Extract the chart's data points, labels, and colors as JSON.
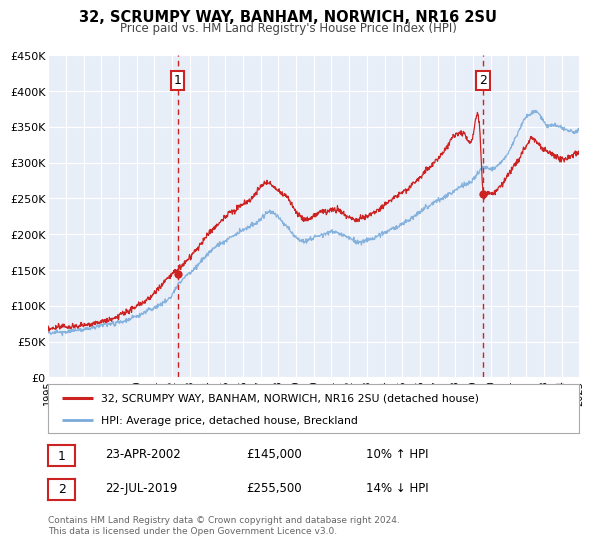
{
  "title": "32, SCRUMPY WAY, BANHAM, NORWICH, NR16 2SU",
  "subtitle": "Price paid vs. HM Land Registry's House Price Index (HPI)",
  "background_color": "#ffffff",
  "plot_bg_color": "#e8eef8",
  "grid_color": "#ffffff",
  "sale1_date_x": 2002.31,
  "sale1_price": 145000,
  "sale1_label": "1",
  "sale2_date_x": 2019.55,
  "sale2_price": 255500,
  "sale2_label": "2",
  "hpi_color": "#7aabdb",
  "sale_color": "#cc2222",
  "legend_sale_label": "32, SCRUMPY WAY, BANHAM, NORWICH, NR16 2SU (detached house)",
  "legend_hpi_label": "HPI: Average price, detached house, Breckland",
  "table_row1": [
    "1",
    "23-APR-2002",
    "£145,000",
    "10% ↑ HPI"
  ],
  "table_row2": [
    "2",
    "22-JUL-2019",
    "£255,500",
    "14% ↓ HPI"
  ],
  "footnote": "Contains HM Land Registry data © Crown copyright and database right 2024.\nThis data is licensed under the Open Government Licence v3.0.",
  "ylim": [
    0,
    450000
  ],
  "xlim_start": 1995,
  "xlim_end": 2025,
  "yticks": [
    0,
    50000,
    100000,
    150000,
    200000,
    250000,
    300000,
    350000,
    400000,
    450000
  ],
  "ytick_labels": [
    "£0",
    "£50K",
    "£100K",
    "£150K",
    "£200K",
    "£250K",
    "£300K",
    "£350K",
    "£400K",
    "£450K"
  ],
  "xticks": [
    1995,
    1996,
    1997,
    1998,
    1999,
    2000,
    2001,
    2002,
    2003,
    2004,
    2005,
    2006,
    2007,
    2008,
    2009,
    2010,
    2011,
    2012,
    2013,
    2014,
    2015,
    2016,
    2017,
    2018,
    2019,
    2020,
    2021,
    2022,
    2023,
    2024,
    2025
  ]
}
